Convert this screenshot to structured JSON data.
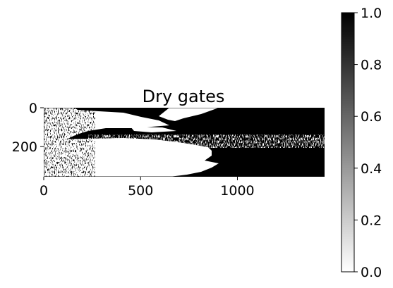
{
  "chart_data": {
    "type": "heatmap",
    "title": "Dry gates",
    "xlabel": "",
    "ylabel": "",
    "colormap": "Greys",
    "colors": {
      "low": "#ffffff",
      "high": "#000000",
      "axis": "#000000"
    },
    "xlim": [
      0,
      1450
    ],
    "ylim": [
      355,
      0
    ],
    "xticks": [
      0,
      500,
      1000
    ],
    "xtick_labels": [
      "0",
      "500",
      "1000"
    ],
    "yticks": [
      0,
      200
    ],
    "ytick_labels": [
      "0",
      "200"
    ],
    "colorbar": {
      "range": [
        0.0,
        1.0
      ],
      "ticks": [
        0.0,
        0.2,
        0.4,
        0.6,
        0.8,
        1.0
      ],
      "tick_labels": [
        "0.0",
        "0.2",
        "0.4",
        "0.6",
        "0.8",
        "1.0"
      ]
    },
    "grid": false,
    "description_regions": {
      "note": "binary mask: left portion (x < ~250) mostly white with scattered black specks; middle band white tapering to boundary near x ~ 700-900; right portion mostly black (value 1.0); horizontal streak near y ~ 180"
    }
  }
}
